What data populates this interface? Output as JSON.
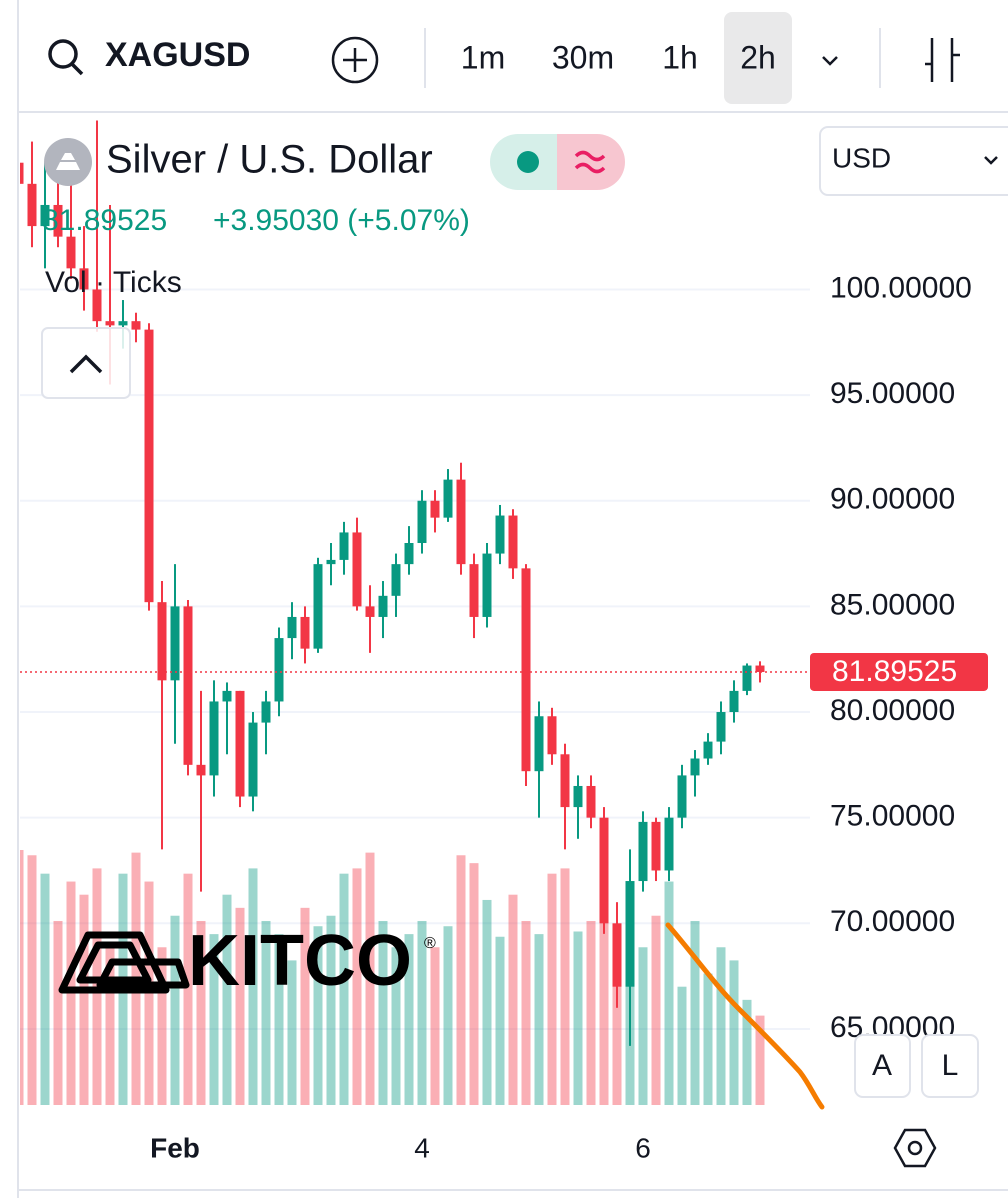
{
  "toolbar": {
    "symbol": "XAGUSD",
    "intervals": [
      "1m",
      "30m",
      "1h",
      "2h"
    ]
  },
  "legend": {
    "title": "Silver / U.S. Dollar",
    "price": "81.89525",
    "change": "+3.95030 (+5.07%)",
    "indicator": "Vol · Ticks"
  },
  "currency": "USD",
  "buttons": [
    "A",
    "L"
  ],
  "watermark": {
    "text": "KITCO",
    "mark": "®"
  },
  "chart_data": {
    "type": "candlestick",
    "categories": [
      null,
      null,
      null,
      null,
      null,
      null,
      null,
      null,
      null,
      null,
      null,
      null,
      "Feb",
      null,
      null,
      null,
      null,
      null,
      null,
      null,
      null,
      null,
      null,
      null,
      null,
      null,
      null,
      null,
      null,
      null,
      null,
      "4",
      null,
      null,
      null,
      null,
      null,
      null,
      null,
      null,
      null,
      null,
      null,
      null,
      null,
      null,
      null,
      null,
      "6",
      null,
      null,
      null,
      null,
      null,
      null,
      null,
      null,
      null
    ],
    "open": [
      106,
      105,
      103,
      104,
      102.5,
      101,
      100,
      98.5,
      98.3,
      98.5,
      98.1,
      85.2,
      81.5,
      85.0,
      77.5,
      77.0,
      80.5,
      81.0,
      76.0,
      79.5,
      80.5,
      83.5,
      84.5,
      83.0,
      87.0,
      87.2,
      88.5,
      85.0,
      84.5,
      85.5,
      87.0,
      88.0,
      90.0,
      89.2,
      91.0,
      87.0,
      84.5,
      87.5,
      89.3,
      86.8,
      77.2,
      79.8,
      78.0,
      75.5,
      76.5,
      75.0,
      70.0,
      67.0,
      72.0,
      74.8,
      72.5,
      75.0,
      77.0,
      77.8,
      78.6,
      80.0,
      81.0,
      82.2
    ],
    "high": [
      108,
      107,
      106,
      107,
      105,
      103,
      108,
      104,
      99.5,
      98.9,
      98.4,
      86.2,
      87.0,
      85.3,
      81.0,
      81.5,
      81.4,
      81.0,
      80.0,
      81.0,
      84.0,
      85.2,
      85.0,
      87.3,
      88.0,
      89.0,
      89.2,
      86.0,
      86.2,
      87.5,
      88.8,
      90.5,
      90.5,
      91.5,
      91.8,
      87.5,
      88.0,
      89.8,
      89.6,
      87.0,
      80.5,
      80.2,
      78.5,
      77.0,
      77.0,
      75.5,
      71.0,
      73.5,
      75.3,
      75.0,
      75.5,
      77.5,
      78.2,
      79.0,
      80.5,
      81.5,
      82.3,
      82.4
    ],
    "low": [
      104,
      102,
      101,
      102,
      100.5,
      99,
      98,
      95.5,
      97.2,
      97.5,
      84.8,
      73.5,
      78.5,
      77.0,
      71.5,
      76.0,
      78.0,
      75.5,
      75.3,
      78.0,
      79.8,
      82.5,
      82.3,
      82.8,
      86.0,
      86.5,
      84.8,
      82.8,
      83.5,
      84.5,
      86.5,
      87.5,
      88.5,
      89.0,
      86.5,
      83.5,
      84.0,
      87.0,
      86.3,
      76.5,
      75.0,
      77.5,
      73.5,
      74.0,
      74.5,
      69.5,
      66.0,
      64.2,
      71.5,
      72.0,
      72.0,
      74.5,
      76.0,
      77.5,
      78.0,
      79.5,
      80.8,
      81.4
    ],
    "close": [
      105,
      103,
      104,
      102.5,
      101,
      100,
      98.5,
      98.3,
      98.5,
      98.1,
      85.2,
      81.5,
      85.0,
      77.5,
      77.0,
      80.5,
      81.0,
      76.0,
      79.5,
      80.5,
      83.5,
      84.5,
      83.0,
      87.0,
      87.2,
      88.5,
      85.0,
      84.5,
      85.5,
      87.0,
      88.0,
      90.0,
      89.2,
      91.0,
      87.0,
      84.5,
      87.5,
      89.3,
      86.8,
      77.2,
      79.8,
      78.0,
      75.5,
      76.5,
      75.0,
      70.0,
      67.0,
      72.0,
      74.8,
      72.5,
      75.0,
      77.0,
      77.8,
      78.6,
      80.0,
      81.0,
      82.2,
      81.89525
    ],
    "volume": [
      97,
      95,
      88,
      70,
      85,
      80,
      90,
      60,
      88,
      96,
      85,
      60,
      72,
      88,
      70,
      65,
      80,
      75,
      90,
      70,
      65,
      55,
      75,
      68,
      72,
      88,
      90,
      96,
      70,
      60,
      65,
      70,
      60,
      68,
      95,
      92,
      78,
      64,
      80,
      70,
      65,
      88,
      90,
      66,
      70,
      72,
      50,
      52,
      60,
      72,
      85,
      45,
      70,
      50,
      60,
      55,
      40,
      34
    ],
    "up_color": "#089981",
    "down_color": "#f23645",
    "ylim": [
      61.4,
      108.4
    ],
    "yticks": [
      {
        "value": 65,
        "label": "65.00000"
      },
      {
        "value": 70,
        "label": "70.00000"
      },
      {
        "value": 75,
        "label": "75.00000"
      },
      {
        "value": 80,
        "label": "80.00000"
      },
      {
        "value": 85,
        "label": "85.00000"
      },
      {
        "value": 90,
        "label": "90.00000"
      },
      {
        "value": 95,
        "label": "95.00000"
      },
      {
        "value": 100,
        "label": "100.00000"
      }
    ],
    "grid": true,
    "last_price": 81.89525
  }
}
